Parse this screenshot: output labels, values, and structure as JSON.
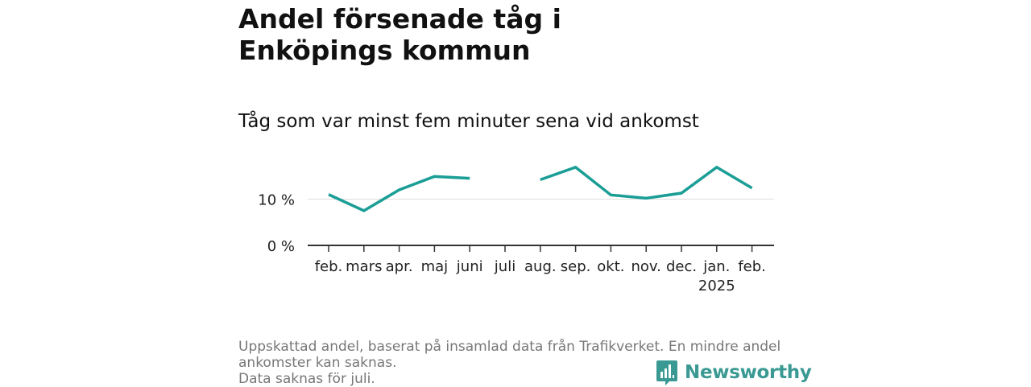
{
  "title": "Andel försenade tåg i Enköpings kommun",
  "subtitle": "Tåg som var minst fem minuter sena vid ankomst",
  "footer": {
    "line1": "Uppskattad andel, baserat på insamlad data från Trafikverket. En mindre andel",
    "line2": "ankomster kan saknas.",
    "line3": "Data saknas för juli."
  },
  "brand": {
    "name": "Newsworthy",
    "icon": "newsworthy-logo-icon",
    "color": "#3a9a93"
  },
  "colors": {
    "line": "#1a9e96",
    "axis": "#333333",
    "grid": "#dddddd"
  },
  "chart_data": {
    "type": "line",
    "categories": [
      "feb.",
      "mars",
      "apr.",
      "maj",
      "juni",
      "juli",
      "aug.",
      "sep.",
      "okt.",
      "nov.",
      "dec.",
      "jan.",
      "feb."
    ],
    "category_sublabels": [
      "",
      "",
      "",
      "",
      "",
      "",
      "",
      "",
      "",
      "",
      "",
      "2025",
      ""
    ],
    "series": [
      {
        "values": [
          11.0,
          7.5,
          12.0,
          14.9,
          14.5,
          null,
          14.2,
          16.9,
          10.9,
          10.2,
          11.3,
          16.9,
          12.4
        ]
      }
    ],
    "yticks": [
      0,
      10
    ],
    "ytick_labels": [
      "0 %",
      "10 %"
    ],
    "ylim": [
      0,
      18
    ],
    "xlabel": "",
    "ylabel": "",
    "grid": true
  }
}
